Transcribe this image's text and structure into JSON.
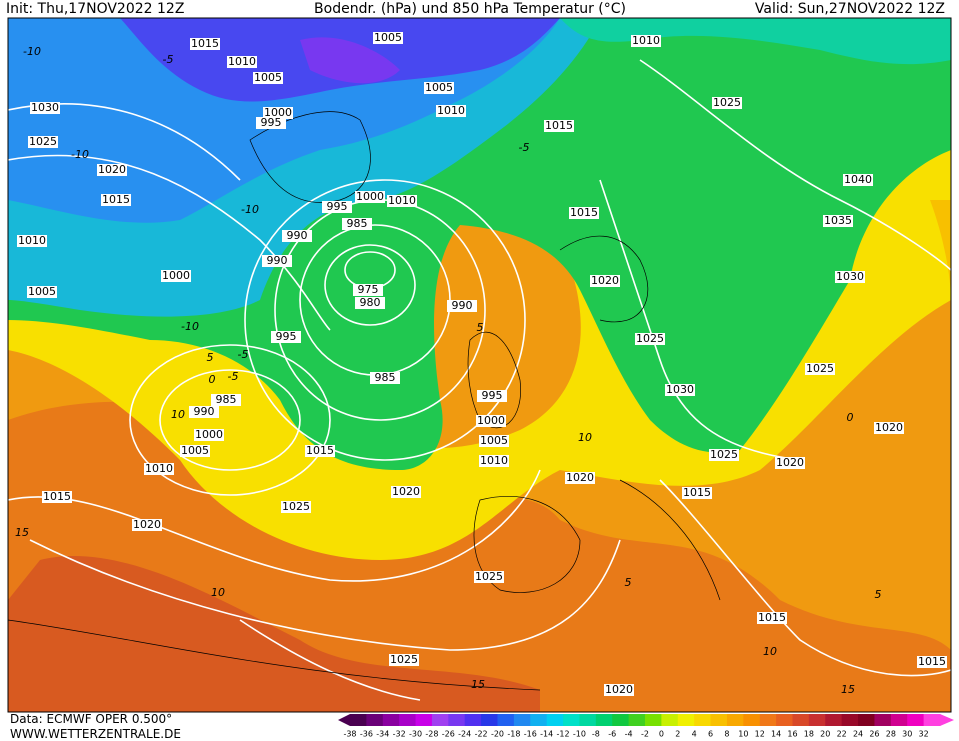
{
  "header": {
    "init": "Init: Thu,17NOV2022 12Z",
    "title": "Bodendr. (hPa) und 850 hPa Temperatur (°C)",
    "valid": "Valid: Sun,27NOV2022 12Z"
  },
  "footer": {
    "data": "Data: ECMWF OPER 0.500°",
    "site": "WWW.WETTERZENTRALE.DE"
  },
  "isobar_labels": [
    1015,
    1005,
    1010,
    1005,
    1030,
    1000,
    995,
    1025,
    1020,
    1015,
    1010,
    1000,
    1005,
    995,
    1000,
    1010,
    985,
    990,
    990,
    975,
    980,
    990,
    995,
    985,
    985,
    990,
    1000,
    1005,
    1010,
    1015,
    1015,
    1020,
    1025,
    1020,
    995,
    1000,
    1005,
    1010,
    1020,
    1025,
    1025,
    1020,
    1015,
    1015,
    1015,
    1025,
    1020,
    1030,
    1025,
    1020,
    1015,
    1015,
    1005,
    1010,
    1010,
    1025,
    1040,
    1035,
    1030,
    1025,
    1020
  ],
  "temperature_labels": [
    -10,
    -10,
    -5,
    -10,
    -10,
    -5,
    5,
    0,
    -5,
    10,
    15,
    5,
    10,
    10,
    5,
    10,
    15,
    15,
    5,
    -5,
    0
  ],
  "colorbar": {
    "values": [
      -38,
      -36,
      -34,
      -32,
      -30,
      -28,
      -26,
      -24,
      -22,
      -20,
      -18,
      -16,
      -14,
      -12,
      -10,
      -8,
      -6,
      -4,
      -2,
      0,
      2,
      4,
      6,
      8,
      10,
      12,
      14,
      16,
      18,
      20,
      22,
      24,
      26,
      28,
      30,
      32
    ],
    "colors": [
      "#4a0050",
      "#6a0078",
      "#8a00a0",
      "#a800c8",
      "#c800e8",
      "#a040f0",
      "#7838f0",
      "#5030f0",
      "#2838e8",
      "#2060f0",
      "#2088f0",
      "#10b0f0",
      "#00d0f0",
      "#00e0c8",
      "#00d8a0",
      "#00d070",
      "#10c840",
      "#40d020",
      "#78e000",
      "#c8f000",
      "#f0f000",
      "#f8d800",
      "#f8c000",
      "#f8a800",
      "#f89000",
      "#f07818",
      "#e86020",
      "#d84828",
      "#c83030",
      "#b01830",
      "#980828",
      "#800020",
      "#a00060",
      "#d00090",
      "#f000c0",
      "#ff40e0"
    ]
  }
}
